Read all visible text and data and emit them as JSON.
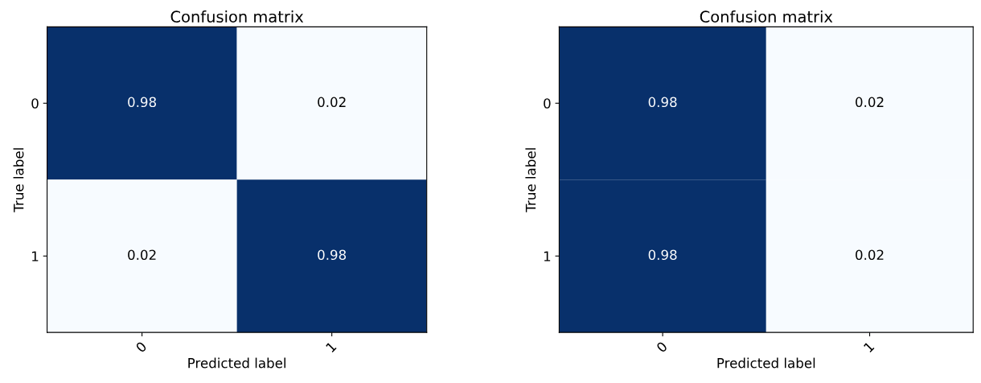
{
  "chart_data": [
    {
      "type": "heatmap",
      "title": "Confusion matrix",
      "xlabel": "Predicted label",
      "ylabel": "True label",
      "categories": [
        "0",
        "1"
      ],
      "y_categories": [
        "0",
        "1"
      ],
      "cells": [
        [
          0.98,
          0.02
        ],
        [
          0.02,
          0.98
        ]
      ],
      "data_labels": true
    },
    {
      "type": "heatmap",
      "title": "Confusion matrix",
      "xlabel": "Predicted label",
      "ylabel": "True label",
      "categories": [
        "0",
        "1"
      ],
      "y_categories": [
        "0",
        "1"
      ],
      "cells": [
        [
          0.98,
          0.02
        ],
        [
          0.98,
          0.02
        ]
      ],
      "data_labels": true
    }
  ]
}
